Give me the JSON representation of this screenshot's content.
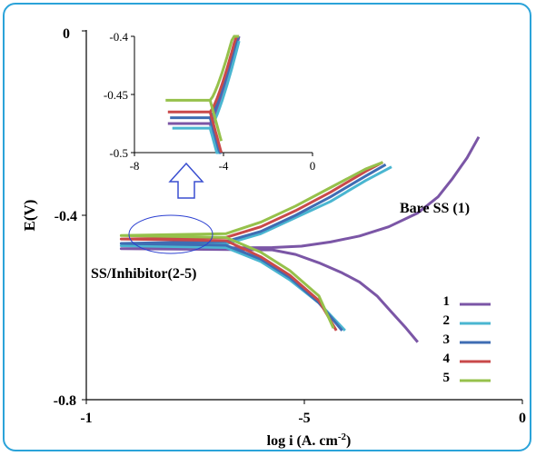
{
  "chart_data": [
    {
      "type": "line",
      "xlabel": "log i (A. cm-2)",
      "ylabel": "E(V)",
      "xlim": [
        -1,
        0
      ],
      "ylim": [
        -0.8,
        0
      ],
      "x_ticks": [
        "-1",
        "-5",
        "0"
      ],
      "y_ticks": [
        "0",
        "-0.4",
        "-0.8"
      ],
      "legend": {
        "placement": "bottom-right",
        "entries": [
          "1",
          "2",
          "3",
          "4",
          "5"
        ]
      },
      "annotations": [
        "Bare SS (1)",
        "SS/Inhibitor(2-5)"
      ],
      "series": [
        {
          "name": "1",
          "color": "#7b56a6",
          "anodic": [
            [
              -5.8,
              -0.47
            ],
            [
              -5.3,
              -0.467
            ],
            [
              -4.8,
              -0.458
            ],
            [
              -4.3,
              -0.445
            ],
            [
              -3.8,
              -0.425
            ],
            [
              -3.3,
              -0.395
            ],
            [
              -2.95,
              -0.36
            ],
            [
              -2.7,
              -0.32
            ],
            [
              -2.45,
              -0.275
            ],
            [
              -2.25,
              -0.23
            ]
          ],
          "cathodic": [
            [
              -5.8,
              -0.475
            ],
            [
              -5.4,
              -0.485
            ],
            [
              -5.0,
              -0.503
            ],
            [
              -4.6,
              -0.525
            ],
            [
              -4.3,
              -0.545
            ],
            [
              -4.0,
              -0.575
            ],
            [
              -3.75,
              -0.61
            ],
            [
              -3.5,
              -0.645
            ],
            [
              -3.3,
              -0.675
            ]
          ],
          "plateau_start": -8.4
        },
        {
          "name": "2",
          "color": "#4ab6d1",
          "anodic": [
            [
              -6.6,
              -0.462
            ],
            [
              -6.0,
              -0.44
            ],
            [
              -5.4,
              -0.405
            ],
            [
              -4.8,
              -0.37
            ],
            [
              -4.2,
              -0.325
            ],
            [
              -3.75,
              -0.295
            ]
          ],
          "cathodic": [
            [
              -6.6,
              -0.47
            ],
            [
              -6.0,
              -0.5
            ],
            [
              -5.5,
              -0.54
            ],
            [
              -5.0,
              -0.59
            ],
            [
              -4.55,
              -0.65
            ]
          ],
          "plateau_start": -8.4
        },
        {
          "name": "3",
          "color": "#3f6db3",
          "anodic": [
            [
              -6.6,
              -0.457
            ],
            [
              -6.0,
              -0.435
            ],
            [
              -5.4,
              -0.4
            ],
            [
              -4.8,
              -0.36
            ],
            [
              -4.2,
              -0.315
            ],
            [
              -3.85,
              -0.29
            ]
          ],
          "cathodic": [
            [
              -6.6,
              -0.465
            ],
            [
              -6.0,
              -0.495
            ],
            [
              -5.5,
              -0.535
            ],
            [
              -5.0,
              -0.59
            ],
            [
              -4.6,
              -0.65
            ]
          ],
          "plateau_start": -8.4
        },
        {
          "name": "4",
          "color": "#c9494a",
          "anodic": [
            [
              -6.6,
              -0.448
            ],
            [
              -6.0,
              -0.425
            ],
            [
              -5.4,
              -0.39
            ],
            [
              -4.8,
              -0.35
            ],
            [
              -4.2,
              -0.305
            ],
            [
              -3.9,
              -0.285
            ]
          ],
          "cathodic": [
            [
              -6.6,
              -0.455
            ],
            [
              -6.0,
              -0.49
            ],
            [
              -5.5,
              -0.53
            ],
            [
              -5.0,
              -0.585
            ],
            [
              -4.7,
              -0.65
            ]
          ],
          "plateau_start": -8.4
        },
        {
          "name": "5",
          "color": "#96c14b",
          "anodic": [
            [
              -6.6,
              -0.44
            ],
            [
              -6.0,
              -0.415
            ],
            [
              -5.4,
              -0.38
            ],
            [
              -4.8,
              -0.34
            ],
            [
              -4.2,
              -0.3
            ],
            [
              -3.9,
              -0.285
            ]
          ],
          "cathodic": [
            [
              -6.6,
              -0.448
            ],
            [
              -6.0,
              -0.48
            ],
            [
              -5.5,
              -0.52
            ],
            [
              -5.0,
              -0.575
            ],
            [
              -4.75,
              -0.645
            ]
          ],
          "plateau_start": -8.4
        }
      ]
    },
    {
      "type": "line",
      "inset": true,
      "xlim": [
        -8,
        0
      ],
      "ylim": [
        -0.5,
        -0.4
      ],
      "x_ticks": [
        "-8",
        "-4",
        "0"
      ],
      "y_ticks": [
        "-0.4",
        "-0.45",
        "-0.5"
      ],
      "series": [
        {
          "name": "1",
          "color": "#7b56a6",
          "corr_potential": -0.475,
          "start_x": -6.5
        },
        {
          "name": "2",
          "color": "#4ab6d1",
          "corr_potential": -0.479,
          "start_x": -6.3
        },
        {
          "name": "3",
          "color": "#3f6db3",
          "corr_potential": -0.47,
          "start_x": -6.4
        },
        {
          "name": "4",
          "color": "#c9494a",
          "corr_potential": -0.465,
          "start_x": -6.5
        },
        {
          "name": "5",
          "color": "#96c14b",
          "corr_potential": -0.455,
          "start_x": -6.6
        }
      ]
    }
  ]
}
